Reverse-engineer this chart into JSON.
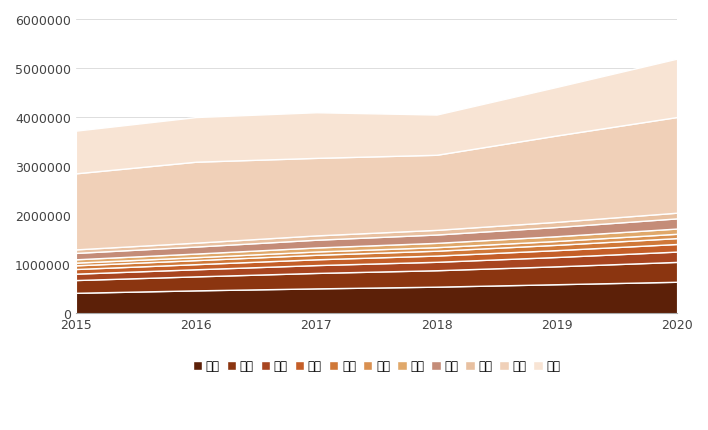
{
  "years": [
    2015,
    2016,
    2017,
    2018,
    2019,
    2020
  ],
  "cities": [
    "深圳",
    "广州",
    "东莞",
    "珠海",
    "中山",
    "肇庆",
    "江门",
    "佛山",
    "惠州",
    "香港",
    "澳门"
  ],
  "data": {
    "深圳": [
      420000,
      470000,
      510000,
      545000,
      595000,
      645000
    ],
    "广州": [
      260000,
      285000,
      315000,
      335000,
      365000,
      405000
    ],
    "东莞": [
      130000,
      145000,
      160000,
      172000,
      190000,
      210000
    ],
    "珠海": [
      95000,
      104000,
      118000,
      127000,
      140000,
      155000
    ],
    "中山": [
      75000,
      82000,
      92000,
      99000,
      108000,
      120000
    ],
    "肇庆": [
      55000,
      60000,
      67000,
      72000,
      79000,
      88000
    ],
    "江门": [
      68000,
      74000,
      82000,
      88000,
      97000,
      107000
    ],
    "佛山": [
      130000,
      143000,
      158000,
      170000,
      188000,
      207000
    ],
    "惠州": [
      72000,
      79000,
      88000,
      95000,
      105000,
      116000
    ],
    "香港": [
      1550000,
      1650000,
      1580000,
      1530000,
      1760000,
      1950000
    ],
    "澳门": [
      870000,
      910000,
      930000,
      820000,
      990000,
      1190000
    ]
  },
  "legend_colors": {
    "深圳": "#5C2008",
    "广州": "#8B3510",
    "东莞": "#A84520",
    "珠海": "#C45E28",
    "中山": "#D07838",
    "肇庆": "#D99050",
    "江门": "#E0A86A",
    "佛山": "#C48C78",
    "惠州": "#E8C0A0",
    "香港": "#F0D0B8",
    "澳门": "#F8E4D4"
  },
  "ylim": [
    0,
    6000000
  ],
  "yticks": [
    0,
    1000000,
    2000000,
    3000000,
    4000000,
    5000000,
    6000000
  ],
  "xticks": [
    2015,
    2016,
    2017,
    2018,
    2019,
    2020
  ],
  "background_color": "#ffffff"
}
